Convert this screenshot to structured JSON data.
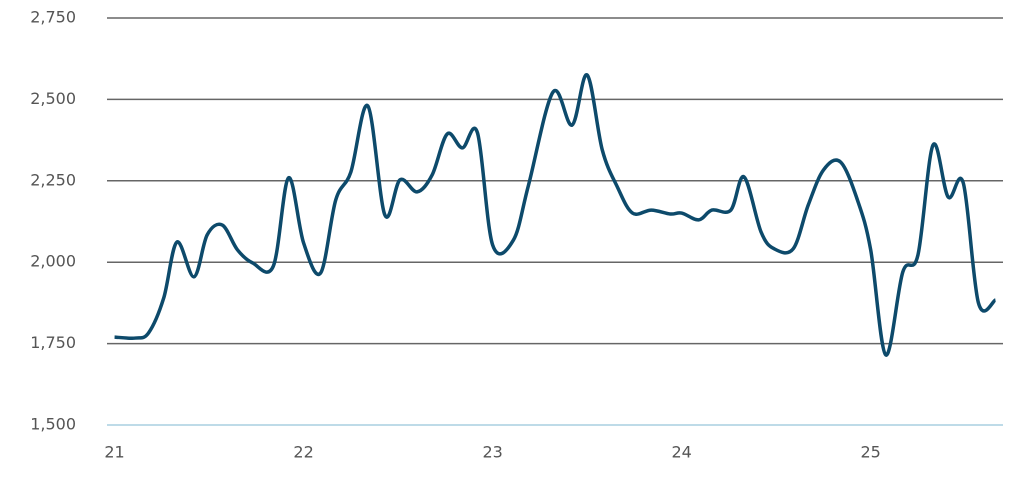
{
  "chart_data": {
    "type": "line",
    "x": [
      21.0,
      21.11,
      21.18,
      21.26,
      21.33,
      21.42,
      21.49,
      21.57,
      21.65,
      21.73,
      21.84,
      21.92,
      22.0,
      22.09,
      22.17,
      22.25,
      22.34,
      22.43,
      22.51,
      22.6,
      22.68,
      22.76,
      22.84,
      22.92,
      23.0,
      23.11,
      23.19,
      23.32,
      23.42,
      23.5,
      23.58,
      23.66,
      23.74,
      23.84,
      23.94,
      24.0,
      24.09,
      24.16,
      24.26,
      24.33,
      24.42,
      24.49,
      24.59,
      24.67,
      24.75,
      24.84,
      24.93,
      25.0,
      25.08,
      25.17,
      25.25,
      25.33,
      25.41,
      25.49,
      25.57,
      25.66
    ],
    "series": [
      {
        "color": "#0d4a6b",
        "values": [
          1770,
          1767,
          1783,
          1890,
          2062,
          1955,
          2084,
          2114,
          2038,
          1998,
          1988,
          2259,
          2059,
          1967,
          2191,
          2277,
          2480,
          2145,
          2253,
          2216,
          2268,
          2394,
          2351,
          2397,
          2053,
          2068,
          2237,
          2523,
          2421,
          2575,
          2345,
          2231,
          2151,
          2160,
          2148,
          2151,
          2130,
          2160,
          2160,
          2262,
          2093,
          2041,
          2041,
          2176,
          2283,
          2308,
          2191,
          2038,
          1715,
          1970,
          2022,
          2360,
          2200,
          2243,
          1875,
          1884
        ]
      }
    ],
    "xlim": [
      20.96,
      25.7
    ],
    "xticks": [
      21,
      22,
      23,
      24,
      25
    ],
    "ylim": [
      1500,
      2750
    ],
    "yticks": [
      {
        "value": 1500,
        "label": "1,500"
      },
      {
        "value": 1750,
        "label": "1,750"
      },
      {
        "value": 2000,
        "label": "2,000"
      },
      {
        "value": 2250,
        "label": "2,250"
      },
      {
        "value": 2500,
        "label": "2,500"
      },
      {
        "value": 2750,
        "label": "2,750"
      }
    ],
    "grid": true
  }
}
